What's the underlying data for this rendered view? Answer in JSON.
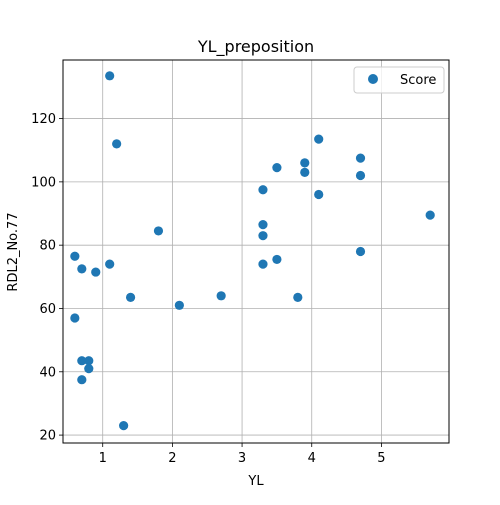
{
  "chart_data": {
    "type": "scatter",
    "title": "YL_preposition",
    "xlabel": "YL",
    "ylabel": "RDL2_No.77",
    "xlim": [
      0.43,
      5.97
    ],
    "ylim": [
      17.5,
      138.5
    ],
    "xticks": [
      1,
      2,
      3,
      4,
      5
    ],
    "yticks": [
      20,
      40,
      60,
      80,
      100,
      120
    ],
    "grid": true,
    "legend": {
      "position": "top-right",
      "entries": [
        "Score"
      ]
    },
    "series": [
      {
        "name": "Score",
        "color": "#1f77b4",
        "points": [
          [
            1.1,
            133.5
          ],
          [
            1.2,
            112.0
          ],
          [
            0.6,
            76.5
          ],
          [
            0.7,
            72.5
          ],
          [
            0.9,
            71.5
          ],
          [
            1.1,
            74.0
          ],
          [
            0.6,
            57.0
          ],
          [
            0.7,
            43.5
          ],
          [
            0.8,
            43.5
          ],
          [
            0.8,
            41.0
          ],
          [
            0.7,
            37.5
          ],
          [
            1.3,
            23.0
          ],
          [
            1.4,
            63.5
          ],
          [
            1.8,
            84.5
          ],
          [
            2.1,
            61.0
          ],
          [
            2.7,
            64.0
          ],
          [
            3.3,
            97.5
          ],
          [
            3.3,
            86.5
          ],
          [
            3.3,
            83.0
          ],
          [
            3.3,
            74.0
          ],
          [
            3.5,
            104.5
          ],
          [
            3.5,
            75.5
          ],
          [
            3.8,
            63.5
          ],
          [
            3.9,
            106.0
          ],
          [
            3.9,
            103.0
          ],
          [
            4.1,
            113.5
          ],
          [
            4.1,
            96.0
          ],
          [
            4.7,
            107.5
          ],
          [
            4.7,
            102.0
          ],
          [
            4.7,
            78.0
          ],
          [
            5.7,
            89.5
          ]
        ]
      }
    ]
  }
}
